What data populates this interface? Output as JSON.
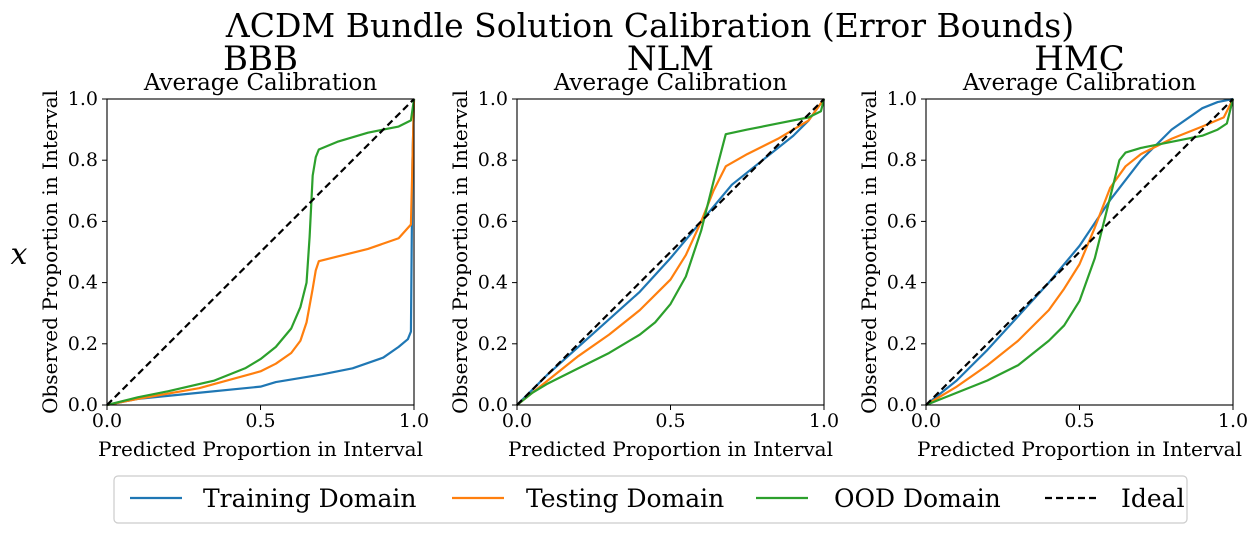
{
  "figure": {
    "suptitle": "ΛCDM Bundle Solution Calibration (Error Bounds)",
    "row_label": "x"
  },
  "legend": {
    "items": [
      {
        "name": "Training Domain",
        "color": "#1f77b4",
        "dash": "solid"
      },
      {
        "name": "Testing Domain",
        "color": "#ff7f0e",
        "dash": "solid"
      },
      {
        "name": "OOD Domain",
        "color": "#2ca02c",
        "dash": "solid"
      },
      {
        "name": "Ideal",
        "color": "#000000",
        "dash": "dashed"
      }
    ],
    "placement": "bottom"
  },
  "chart_data": [
    {
      "type": "line",
      "title": "BBB",
      "subtitle": "Average Calibration",
      "xlabel": "Predicted Proportion in Interval",
      "ylabel": "Observed Proportion in Interval",
      "xlim": [
        0,
        1
      ],
      "ylim": [
        0,
        1
      ],
      "xticks": [
        "0.0",
        "0.5",
        "1.0"
      ],
      "yticks": [
        "0.0",
        "0.2",
        "0.4",
        "0.6",
        "0.8",
        "1.0"
      ],
      "grid": false,
      "series": [
        {
          "name": "Training Domain",
          "color": "#1f77b4",
          "x": [
            0,
            0.1,
            0.3,
            0.5,
            0.55,
            0.7,
            0.8,
            0.9,
            0.95,
            0.98,
            0.99,
            0.995,
            1.0
          ],
          "y": [
            0,
            0.02,
            0.04,
            0.06,
            0.075,
            0.1,
            0.12,
            0.155,
            0.19,
            0.215,
            0.24,
            0.8,
            1.0
          ]
        },
        {
          "name": "Testing Domain",
          "color": "#ff7f0e",
          "x": [
            0,
            0.1,
            0.3,
            0.5,
            0.55,
            0.6,
            0.63,
            0.65,
            0.67,
            0.68,
            0.69,
            0.75,
            0.85,
            0.95,
            0.99,
            1.0
          ],
          "y": [
            0,
            0.02,
            0.055,
            0.11,
            0.135,
            0.17,
            0.21,
            0.27,
            0.38,
            0.44,
            0.47,
            0.485,
            0.51,
            0.545,
            0.59,
            1.0
          ]
        },
        {
          "name": "OOD Domain",
          "color": "#2ca02c",
          "x": [
            0,
            0.1,
            0.2,
            0.35,
            0.45,
            0.5,
            0.55,
            0.6,
            0.63,
            0.65,
            0.66,
            0.67,
            0.68,
            0.69,
            0.75,
            0.85,
            0.95,
            0.99,
            1.0
          ],
          "y": [
            0,
            0.025,
            0.045,
            0.08,
            0.12,
            0.15,
            0.19,
            0.25,
            0.32,
            0.4,
            0.55,
            0.75,
            0.81,
            0.835,
            0.86,
            0.89,
            0.91,
            0.93,
            1.0
          ]
        },
        {
          "name": "Ideal",
          "color": "#000000",
          "dash": true,
          "x": [
            0,
            1
          ],
          "y": [
            0,
            1
          ]
        }
      ]
    },
    {
      "type": "line",
      "title": "NLM",
      "subtitle": "Average Calibration",
      "xlabel": "Predicted Proportion in Interval",
      "ylabel": "Observed Proportion in Interval",
      "xlim": [
        0,
        1
      ],
      "ylim": [
        0,
        1
      ],
      "xticks": [
        "0.0",
        "0.5",
        "1.0"
      ],
      "yticks": [
        "0.0",
        "0.2",
        "0.4",
        "0.6",
        "0.8",
        "1.0"
      ],
      "grid": false,
      "series": [
        {
          "name": "Training Domain",
          "color": "#1f77b4",
          "x": [
            0,
            0.1,
            0.2,
            0.3,
            0.4,
            0.5,
            0.6,
            0.7,
            0.8,
            0.9,
            0.95,
            1.0
          ],
          "y": [
            0,
            0.1,
            0.19,
            0.28,
            0.37,
            0.48,
            0.6,
            0.72,
            0.8,
            0.88,
            0.93,
            1.0
          ]
        },
        {
          "name": "Testing Domain",
          "color": "#ff7f0e",
          "x": [
            0,
            0.1,
            0.2,
            0.3,
            0.4,
            0.5,
            0.55,
            0.6,
            0.64,
            0.68,
            0.75,
            0.85,
            0.95,
            1.0
          ],
          "y": [
            0,
            0.08,
            0.16,
            0.23,
            0.31,
            0.41,
            0.49,
            0.6,
            0.7,
            0.78,
            0.82,
            0.87,
            0.93,
            1.0
          ]
        },
        {
          "name": "OOD Domain",
          "color": "#2ca02c",
          "x": [
            0,
            0.05,
            0.1,
            0.2,
            0.3,
            0.4,
            0.45,
            0.5,
            0.55,
            0.6,
            0.65,
            0.68,
            0.75,
            0.85,
            0.95,
            0.99,
            1.0
          ],
          "y": [
            0,
            0.04,
            0.07,
            0.12,
            0.17,
            0.23,
            0.27,
            0.33,
            0.42,
            0.57,
            0.77,
            0.885,
            0.9,
            0.92,
            0.94,
            0.96,
            1.0
          ]
        },
        {
          "name": "Ideal",
          "color": "#000000",
          "dash": true,
          "x": [
            0,
            1
          ],
          "y": [
            0,
            1
          ]
        }
      ]
    },
    {
      "type": "line",
      "title": "HMC",
      "subtitle": "Average Calibration",
      "xlabel": "Predicted Proportion in Interval",
      "ylabel": "Observed Proportion in Interval",
      "xlim": [
        0,
        1
      ],
      "ylim": [
        0,
        1
      ],
      "xticks": [
        "0.0",
        "0.5",
        "1.0"
      ],
      "yticks": [
        "0.0",
        "0.2",
        "0.4",
        "0.6",
        "0.8",
        "1.0"
      ],
      "grid": false,
      "series": [
        {
          "name": "Training Domain",
          "color": "#1f77b4",
          "x": [
            0,
            0.1,
            0.2,
            0.3,
            0.4,
            0.5,
            0.6,
            0.7,
            0.8,
            0.9,
            0.95,
            1.0
          ],
          "y": [
            0,
            0.08,
            0.18,
            0.29,
            0.4,
            0.52,
            0.67,
            0.8,
            0.9,
            0.97,
            0.99,
            1.0
          ]
        },
        {
          "name": "Testing Domain",
          "color": "#ff7f0e",
          "x": [
            0,
            0.1,
            0.2,
            0.3,
            0.4,
            0.45,
            0.5,
            0.55,
            0.6,
            0.65,
            0.7,
            0.8,
            0.9,
            0.97,
            1.0
          ],
          "y": [
            0,
            0.06,
            0.13,
            0.21,
            0.31,
            0.38,
            0.46,
            0.58,
            0.71,
            0.78,
            0.82,
            0.87,
            0.91,
            0.94,
            1.0
          ]
        },
        {
          "name": "OOD Domain",
          "color": "#2ca02c",
          "x": [
            0,
            0.1,
            0.2,
            0.3,
            0.4,
            0.45,
            0.5,
            0.55,
            0.6,
            0.63,
            0.65,
            0.7,
            0.8,
            0.9,
            0.95,
            0.98,
            1.0
          ],
          "y": [
            0,
            0.04,
            0.08,
            0.13,
            0.21,
            0.26,
            0.34,
            0.48,
            0.68,
            0.8,
            0.825,
            0.84,
            0.86,
            0.88,
            0.9,
            0.92,
            1.0
          ]
        },
        {
          "name": "Ideal",
          "color": "#000000",
          "dash": true,
          "x": [
            0,
            1
          ],
          "y": [
            0,
            1
          ]
        }
      ]
    }
  ]
}
